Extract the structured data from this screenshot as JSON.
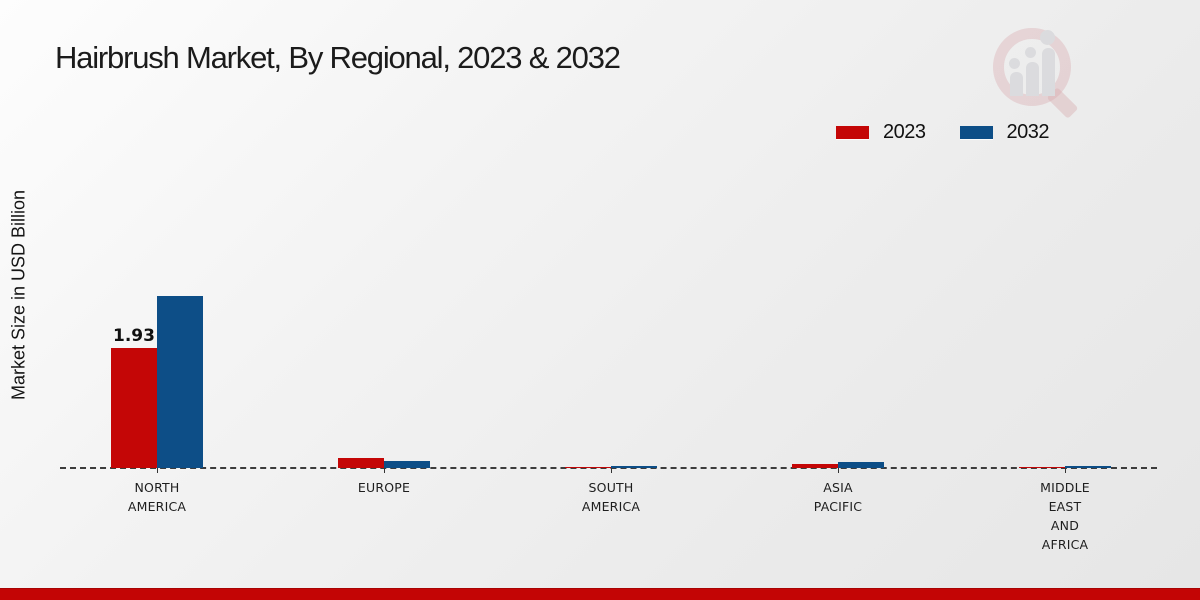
{
  "title": "Hairbrush Market, By Regional, 2023 & 2032",
  "ylabel": "Market Size in USD Billion",
  "legend": {
    "items": [
      {
        "label": "2023",
        "color": "#c40606"
      },
      {
        "label": "2032",
        "color": "#0d4e87"
      }
    ]
  },
  "colors": {
    "series_2023": "#c40606",
    "series_2032": "#0d4e87",
    "footer_strip": "#c30505",
    "baseline": "#3c3c3c",
    "background_light": "#fdfdfd",
    "background_dark": "#e6e6e6"
  },
  "watermark": {
    "name": "market-research-logo"
  },
  "chart_data": {
    "type": "bar",
    "title": "Hairbrush Market, By Regional, 2023 & 2032",
    "xlabel": "",
    "ylabel": "Market Size in USD Billion",
    "legend_position": "upper right",
    "grid": false,
    "baseline_style": "dashed",
    "categories": [
      "NORTH AMERICA",
      "EUROPE",
      "SOUTH AMERICA",
      "ASIA PACIFIC",
      "MIDDLE EAST AND AFRICA"
    ],
    "categories_lines": [
      [
        "NORTH",
        "AMERICA"
      ],
      [
        "EUROPE"
      ],
      [
        "SOUTH",
        "AMERICA"
      ],
      [
        "ASIA",
        "PACIFIC"
      ],
      [
        "MIDDLE",
        "EAST",
        "AND",
        "AFRICA"
      ]
    ],
    "series": [
      {
        "name": "2023",
        "color": "#c40606",
        "values": [
          1.93,
          0.16,
          0.02,
          0.07,
          0.02
        ]
      },
      {
        "name": "2032",
        "color": "#0d4e87",
        "values": [
          2.77,
          0.11,
          0.04,
          0.1,
          0.04
        ]
      }
    ],
    "annotations": [
      {
        "category_index": 0,
        "series_index": 0,
        "text": "1.93"
      }
    ],
    "ylim": [
      0,
      3.2
    ]
  }
}
